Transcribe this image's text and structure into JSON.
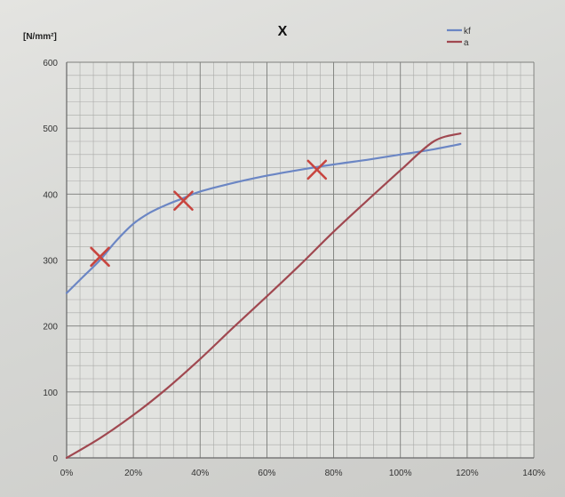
{
  "chart_data": {
    "type": "line",
    "title": "X",
    "ylabel": "[N/mm²]",
    "xlabel": "",
    "xlim": [
      0,
      140
    ],
    "ylim": [
      0,
      600
    ],
    "x_ticks": [
      {
        "value": 0,
        "label": "0%"
      },
      {
        "value": 20,
        "label": "20%"
      },
      {
        "value": 40,
        "label": "40%"
      },
      {
        "value": 60,
        "label": "60%"
      },
      {
        "value": 80,
        "label": "80%"
      },
      {
        "value": 100,
        "label": "100%"
      },
      {
        "value": 120,
        "label": "120%"
      },
      {
        "value": 140,
        "label": "140%"
      }
    ],
    "y_ticks": [
      {
        "value": 0,
        "label": "0"
      },
      {
        "value": 100,
        "label": "100"
      },
      {
        "value": 200,
        "label": "200"
      },
      {
        "value": 300,
        "label": "300"
      },
      {
        "value": 400,
        "label": "400"
      },
      {
        "value": 500,
        "label": "500"
      },
      {
        "value": 600,
        "label": "600"
      }
    ],
    "grid": true,
    "legend_position": "top-right",
    "series": [
      {
        "name": "kf",
        "color": "#6b86c4",
        "x": [
          0,
          5,
          10,
          15,
          20,
          25,
          30,
          35,
          40,
          50,
          60,
          70,
          80,
          90,
          100,
          110,
          118
        ],
        "y": [
          250,
          275,
          300,
          330,
          355,
          372,
          384,
          394,
          404,
          417,
          428,
          437,
          445,
          452,
          460,
          468,
          476
        ]
      },
      {
        "name": "a",
        "color": "#a04850",
        "x": [
          0,
          10,
          20,
          30,
          40,
          50,
          60,
          70,
          80,
          90,
          100,
          110,
          118
        ],
        "y": [
          0,
          30,
          65,
          105,
          150,
          198,
          245,
          293,
          343,
          390,
          436,
          480,
          492
        ]
      }
    ],
    "markers": [
      {
        "x": 10,
        "y": 305,
        "symbol": "x"
      },
      {
        "x": 35,
        "y": 390,
        "symbol": "x"
      },
      {
        "x": 75,
        "y": 437,
        "symbol": "x"
      }
    ]
  }
}
